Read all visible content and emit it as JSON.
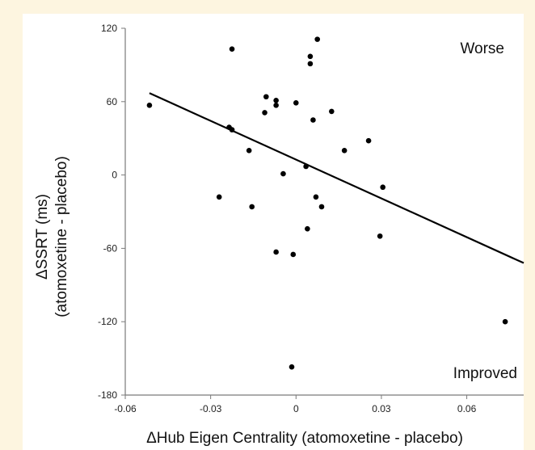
{
  "chart_data": {
    "type": "scatter",
    "xlabel": "ΔHub Eigen Centrality (atomoxetine - placebo)",
    "ylabel_line1": "ΔSSRT (ms)",
    "ylabel_line2": "(atomoxetine - placebo)",
    "xlim": [
      -0.06,
      0.08
    ],
    "ylim": [
      -180,
      120
    ],
    "xticks": [
      -0.06,
      -0.03,
      0,
      0.03,
      0.06
    ],
    "xtick_labels": [
      "-0.06",
      "-0.03",
      "0",
      "0.03",
      "0.06"
    ],
    "yticks": [
      -180,
      -120,
      -60,
      0,
      60,
      120
    ],
    "ytick_labels": [
      "-180",
      "-120",
      "-60",
      "0",
      "60",
      "120"
    ],
    "grid": false,
    "annotations": [
      {
        "text": "Worse",
        "position": "top-right"
      },
      {
        "text": "Improved",
        "position": "bottom-right"
      }
    ],
    "points": [
      {
        "x": -0.0515,
        "y": 57
      },
      {
        "x": -0.0225,
        "y": 103
      },
      {
        "x": -0.0235,
        "y": 39
      },
      {
        "x": -0.0225,
        "y": 37
      },
      {
        "x": -0.027,
        "y": -18
      },
      {
        "x": -0.0165,
        "y": 20
      },
      {
        "x": -0.0155,
        "y": -26
      },
      {
        "x": -0.0105,
        "y": 64
      },
      {
        "x": -0.011,
        "y": 51
      },
      {
        "x": -0.007,
        "y": 61
      },
      {
        "x": -0.007,
        "y": 57
      },
      {
        "x": -0.007,
        "y": -63
      },
      {
        "x": -0.0045,
        "y": 1
      },
      {
        "x": -0.001,
        "y": -65
      },
      {
        "x": -0.0015,
        "y": -157
      },
      {
        "x": 0.0,
        "y": 59
      },
      {
        "x": 0.0035,
        "y": 7
      },
      {
        "x": 0.004,
        "y": -44
      },
      {
        "x": 0.005,
        "y": 97
      },
      {
        "x": 0.005,
        "y": 91
      },
      {
        "x": 0.0075,
        "y": 111
      },
      {
        "x": 0.006,
        "y": 45
      },
      {
        "x": 0.007,
        "y": -18
      },
      {
        "x": 0.009,
        "y": -26
      },
      {
        "x": 0.0125,
        "y": 52
      },
      {
        "x": 0.017,
        "y": 20
      },
      {
        "x": 0.0255,
        "y": 28
      },
      {
        "x": 0.0295,
        "y": -50
      },
      {
        "x": 0.0305,
        "y": -10
      },
      {
        "x": 0.0735,
        "y": -120
      }
    ],
    "trendline": {
      "x": [
        -0.0515,
        0.08
      ],
      "y": [
        67,
        -72
      ]
    }
  }
}
